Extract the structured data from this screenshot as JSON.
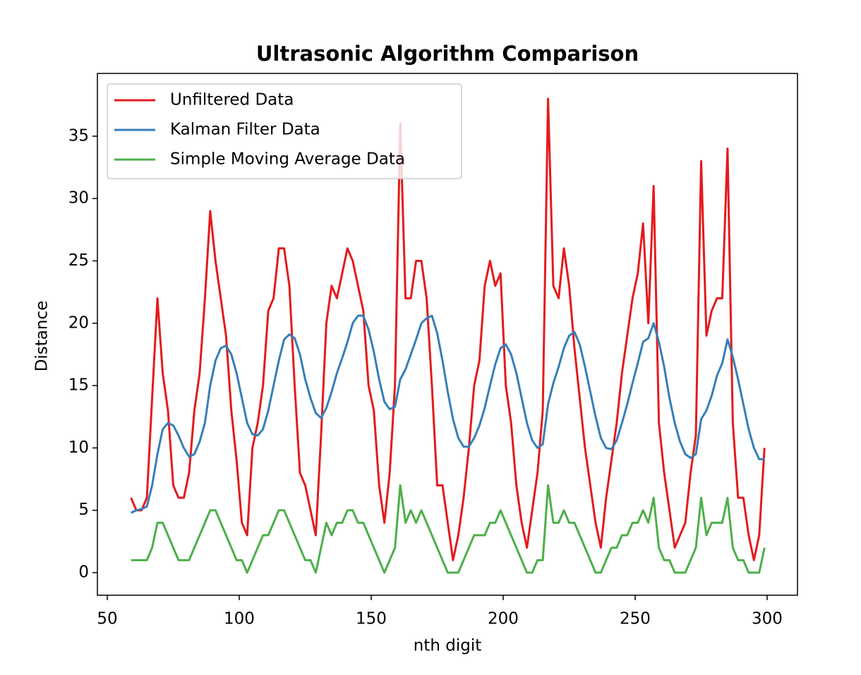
{
  "chart_data": {
    "type": "line",
    "title": "Ultrasonic Algorithm Comparison",
    "xlabel": "nth digit",
    "ylabel": "Distance",
    "x": [
      59,
      61,
      63,
      65,
      67,
      69,
      71,
      73,
      75,
      77,
      79,
      81,
      83,
      85,
      87,
      89,
      91,
      93,
      95,
      97,
      99,
      101,
      103,
      105,
      107,
      109,
      111,
      113,
      115,
      117,
      119,
      121,
      123,
      125,
      127,
      129,
      131,
      133,
      135,
      137,
      139,
      141,
      143,
      145,
      147,
      149,
      151,
      153,
      155,
      157,
      159,
      161,
      163,
      165,
      167,
      169,
      171,
      173,
      175,
      177,
      179,
      181,
      183,
      185,
      187,
      189,
      191,
      193,
      195,
      197,
      199,
      201,
      203,
      205,
      207,
      209,
      211,
      213,
      215,
      217,
      219,
      221,
      223,
      225,
      227,
      229,
      231,
      233,
      235,
      237,
      239,
      241,
      243,
      245,
      247,
      249,
      251,
      253,
      255,
      257,
      259,
      261,
      263,
      265,
      267,
      269,
      271,
      273,
      275,
      277,
      279,
      281,
      283,
      285,
      287,
      289,
      291,
      293,
      295,
      297,
      299
    ],
    "series": [
      {
        "name": "Unfiltered Data",
        "color": "#e41a1c",
        "values": [
          6,
          5,
          5,
          6,
          14,
          22,
          16,
          13,
          7,
          6,
          6,
          8,
          13,
          16,
          22,
          29,
          25,
          22,
          19,
          13,
          9,
          4,
          3,
          10,
          12,
          15,
          21,
          22,
          26,
          26,
          23,
          15,
          8,
          7,
          5,
          3,
          11,
          20,
          23,
          22,
          24,
          26,
          25,
          23,
          21,
          15,
          13,
          7,
          4,
          8,
          15,
          36,
          22,
          22,
          25,
          25,
          22,
          15,
          7,
          7,
          4,
          1,
          3,
          6,
          10,
          15,
          17,
          23,
          25,
          23,
          24,
          15,
          12,
          7,
          4,
          2,
          5,
          8,
          13,
          38,
          23,
          22,
          26,
          23,
          18,
          14,
          10,
          7,
          4,
          2,
          6,
          9,
          12,
          16,
          19,
          22,
          24,
          28,
          20,
          31,
          12,
          8,
          5,
          2,
          3,
          4,
          8,
          11,
          33,
          19,
          21,
          22,
          22,
          34,
          12,
          6,
          6,
          3,
          1,
          3,
          10
        ]
      },
      {
        "name": "Kalman Filter Data",
        "color": "#377eb8",
        "values": [
          4.8,
          5,
          5.1,
          5.3,
          7,
          9.5,
          11.5,
          12,
          11.8,
          11,
          10,
          9.3,
          9.5,
          10.5,
          12,
          15,
          17,
          18,
          18.2,
          17.5,
          16,
          14,
          12,
          11.1,
          11,
          11.5,
          13,
          15,
          17,
          18.7,
          19.1,
          18.8,
          17.5,
          15.5,
          14,
          12.8,
          12.4,
          13.2,
          14.5,
          16,
          17.2,
          18.5,
          20,
          20.6,
          20.6,
          19.5,
          17.7,
          15.5,
          13.7,
          13.1,
          13.3,
          15.5,
          16.3,
          17.5,
          18.7,
          20,
          20.4,
          20.6,
          19.2,
          17,
          14.5,
          12.3,
          10.8,
          10.1,
          10.1,
          10.8,
          11.8,
          13.2,
          15,
          16.7,
          18,
          18.3,
          17.5,
          16,
          14,
          12,
          10.6,
          10,
          10.3,
          13.5,
          15.2,
          16.5,
          18,
          19,
          19.3,
          18.3,
          16.5,
          14.5,
          12.5,
          10.8,
          10,
          9.9,
          10.6,
          12,
          13.5,
          15.2,
          16.8,
          18.5,
          18.8,
          20,
          18.5,
          16.5,
          14,
          12,
          10.5,
          9.5,
          9.2,
          9.5,
          12.3,
          13,
          14.2,
          15.8,
          16.8,
          18.7,
          17.3,
          15.5,
          13.5,
          11.5,
          10,
          9.1,
          9.1
        ]
      },
      {
        "name": "Simple Moving Average Data",
        "color": "#4daf4a",
        "values": [
          1,
          1,
          1,
          1,
          2,
          4,
          4,
          3,
          2,
          1,
          1,
          1,
          2,
          3,
          4,
          5,
          5,
          4,
          3,
          2,
          1,
          1,
          0,
          1,
          2,
          3,
          3,
          4,
          5,
          5,
          4,
          3,
          2,
          1,
          1,
          0,
          2,
          4,
          3,
          4,
          4,
          5,
          5,
          4,
          4,
          3,
          2,
          1,
          0,
          1,
          2,
          7,
          4,
          5,
          4,
          5,
          4,
          3,
          2,
          1,
          0,
          0,
          0,
          1,
          2,
          3,
          3,
          3,
          4,
          4,
          5,
          4,
          3,
          2,
          1,
          0,
          0,
          1,
          1,
          7,
          4,
          4,
          5,
          4,
          4,
          3,
          2,
          1,
          0,
          0,
          1,
          2,
          2,
          3,
          3,
          4,
          4,
          5,
          4,
          6,
          2,
          1,
          1,
          0,
          0,
          0,
          1,
          2,
          6,
          3,
          4,
          4,
          4,
          6,
          2,
          1,
          1,
          0,
          0,
          0,
          2
        ]
      }
    ],
    "xlim": [
      46.26,
      311.5
    ],
    "ylim": [
      -1.81,
      40.03
    ],
    "xticks": [
      50,
      100,
      150,
      200,
      250,
      300
    ],
    "yticks": [
      0,
      5,
      10,
      15,
      20,
      25,
      30,
      35
    ],
    "grid": false,
    "legend": "upper left"
  }
}
